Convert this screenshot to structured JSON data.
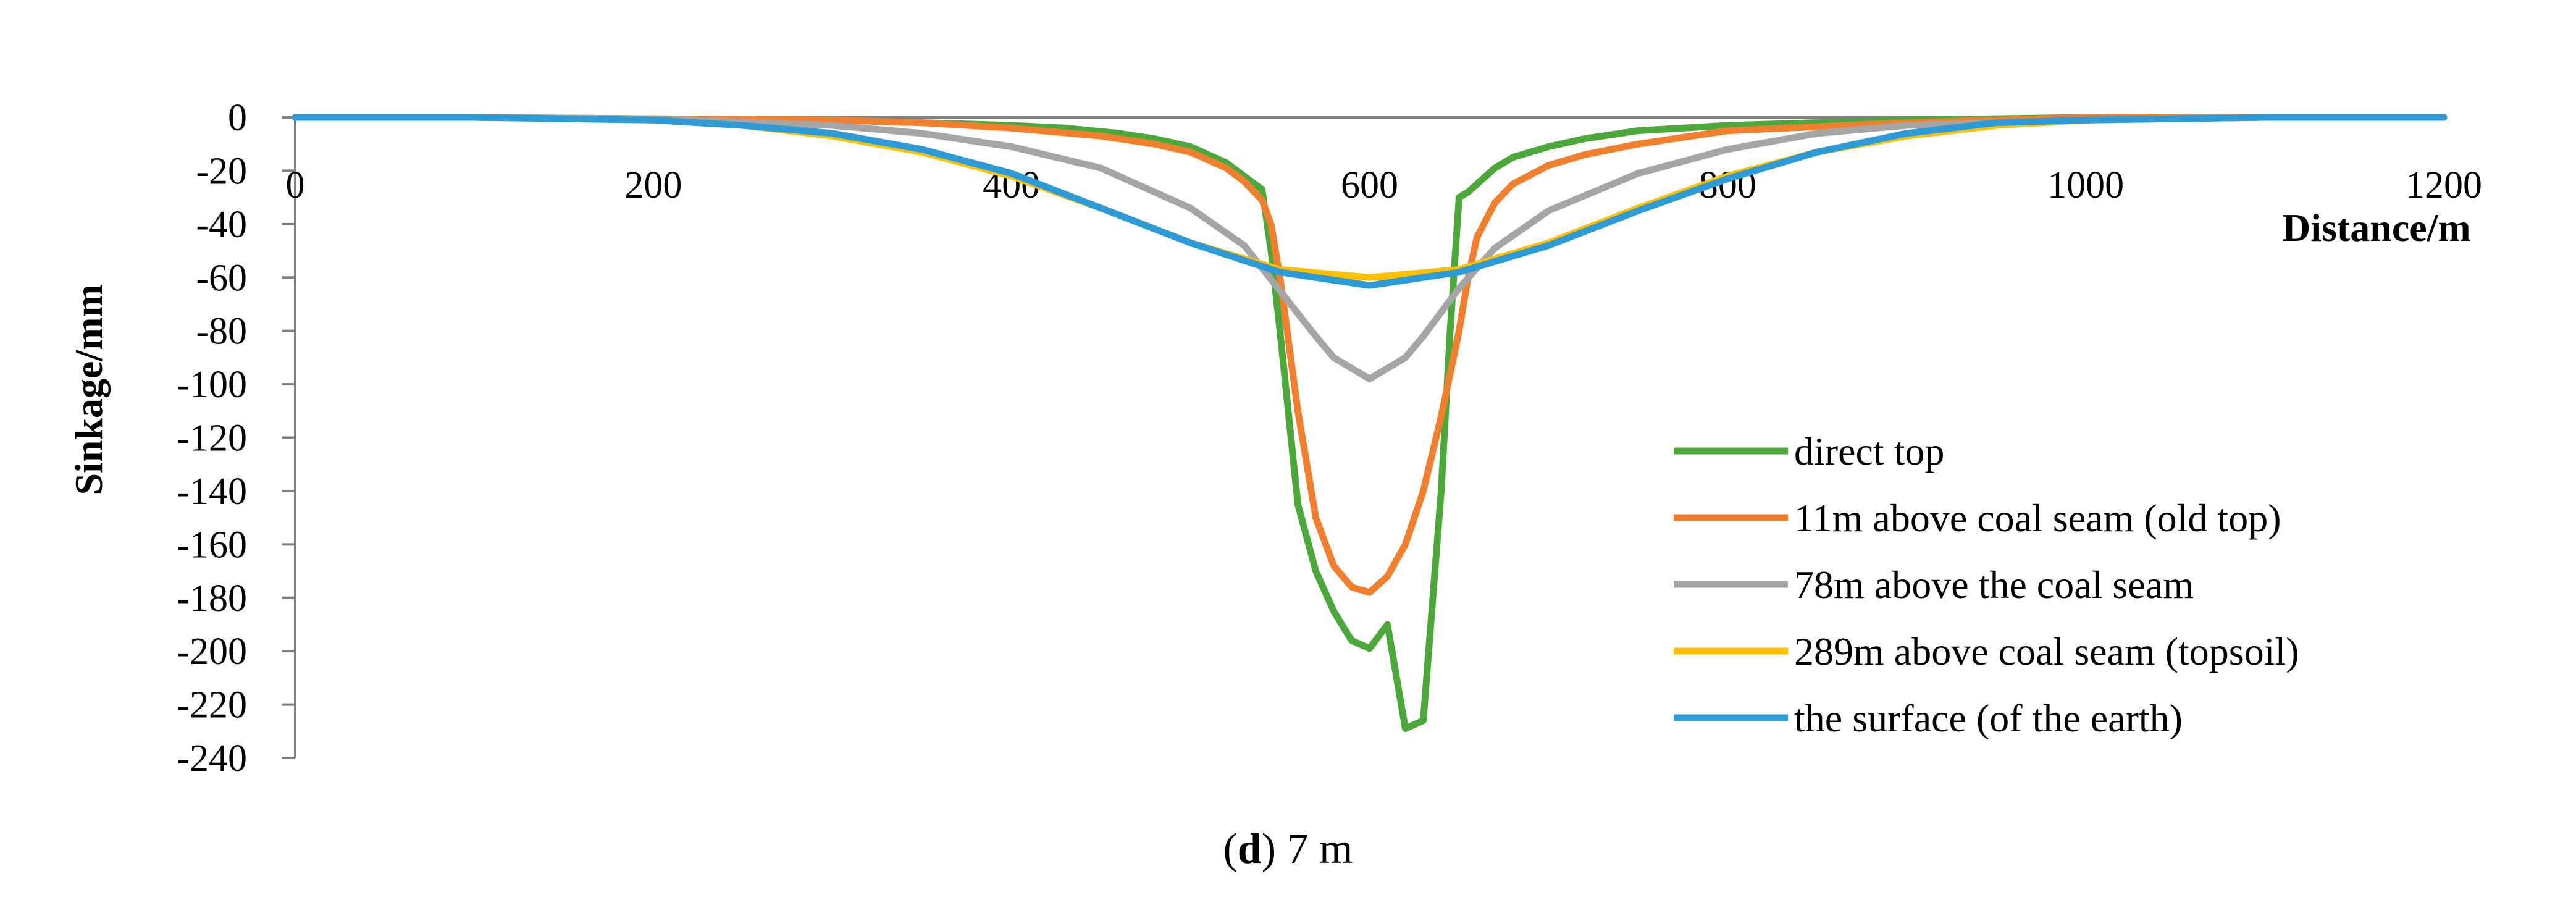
{
  "chart_data": {
    "type": "line",
    "title": "",
    "xlabel": "Distance/m",
    "ylabel": "Sinkage/mm",
    "xlim": [
      0,
      1200
    ],
    "ylim": [
      -240,
      0
    ],
    "x_ticks": [
      0,
      200,
      400,
      600,
      800,
      1000,
      1200
    ],
    "y_ticks": [
      0,
      -20,
      -40,
      -60,
      -80,
      -100,
      -120,
      -140,
      -160,
      -180,
      -200,
      -220,
      -240
    ],
    "grid": false,
    "legend_position": "bottom-right",
    "series": [
      {
        "name": "direct top",
        "color": "#4ca83a",
        "x": [
          0,
          100,
          200,
          300,
          350,
          400,
          430,
          460,
          480,
          500,
          520,
          530,
          540,
          545,
          550,
          560,
          570,
          580,
          590,
          600,
          610,
          620,
          630,
          640,
          645,
          650,
          655,
          660,
          670,
          680,
          700,
          720,
          750,
          800,
          900,
          1000,
          1100,
          1200
        ],
        "values": [
          0,
          0,
          -0.5,
          -1,
          -2,
          -3,
          -4,
          -6,
          -8,
          -11,
          -17,
          -22,
          -27,
          -50,
          -80,
          -145,
          -170,
          -185,
          -196,
          -199,
          -190,
          -229,
          -226,
          -140,
          -80,
          -30,
          -28,
          -25,
          -19,
          -15,
          -11,
          -8,
          -5,
          -3,
          -1,
          0,
          0,
          0
        ]
      },
      {
        "name": "11m above coal seam (old top)",
        "color": "#f08030",
        "x": [
          0,
          100,
          200,
          300,
          350,
          400,
          450,
          480,
          500,
          520,
          530,
          540,
          545,
          550,
          560,
          570,
          580,
          590,
          600,
          610,
          620,
          630,
          640,
          650,
          655,
          660,
          670,
          680,
          700,
          720,
          750,
          800,
          900,
          1000,
          1100,
          1200
        ],
        "values": [
          0,
          0,
          -0.5,
          -1,
          -2,
          -4,
          -7,
          -10,
          -13,
          -19,
          -24,
          -31,
          -40,
          -60,
          -110,
          -150,
          -168,
          -176,
          -178,
          -172,
          -160,
          -140,
          -112,
          -80,
          -60,
          -45,
          -32,
          -25,
          -18,
          -14,
          -10,
          -5,
          -2,
          0,
          0,
          0
        ]
      },
      {
        "name": "78m above the coal seam",
        "color": "#a5a5a5",
        "x": [
          0,
          100,
          200,
          300,
          350,
          400,
          450,
          500,
          530,
          550,
          570,
          580,
          600,
          620,
          630,
          650,
          670,
          700,
          750,
          800,
          850,
          900,
          1000,
          1100,
          1200
        ],
        "values": [
          0,
          0,
          -0.5,
          -3,
          -6,
          -11,
          -19,
          -34,
          -48,
          -65,
          -82,
          -90,
          -98,
          -90,
          -82,
          -64,
          -49,
          -35,
          -21,
          -12,
          -6,
          -3,
          -1,
          0,
          0
        ]
      },
      {
        "name": "289m above coal seam (topsoil)",
        "color": "#ffc000",
        "x": [
          0,
          100,
          200,
          250,
          300,
          350,
          400,
          450,
          500,
          550,
          600,
          650,
          700,
          750,
          800,
          850,
          900,
          950,
          1000,
          1100,
          1200
        ],
        "values": [
          0,
          0,
          -1,
          -3,
          -7,
          -13,
          -22,
          -34,
          -47,
          -57,
          -60,
          -57,
          -47,
          -34,
          -22,
          -13,
          -7,
          -3,
          -1,
          0,
          0
        ]
      },
      {
        "name": "the surface (of the earth)",
        "color": "#2f9bd6",
        "x": [
          0,
          100,
          200,
          250,
          300,
          350,
          400,
          450,
          500,
          550,
          600,
          650,
          700,
          750,
          800,
          850,
          900,
          950,
          1000,
          1100,
          1200
        ],
        "values": [
          0,
          0,
          -1,
          -3,
          -6,
          -12,
          -21,
          -34,
          -47,
          -58,
          -63,
          -58,
          -48,
          -35,
          -23,
          -13,
          -6,
          -2,
          -1,
          0,
          0
        ]
      }
    ]
  },
  "caption": {
    "letter": "d",
    "text": " 7 m",
    "open_paren": "(",
    "close_paren": ")"
  }
}
